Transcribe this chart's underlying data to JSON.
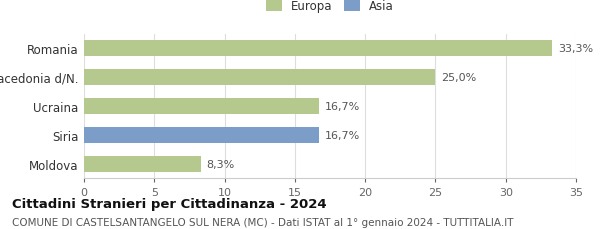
{
  "categories": [
    "Moldova",
    "Siria",
    "Ucraina",
    "Macedonia d/N.",
    "Romania"
  ],
  "values": [
    8.3,
    16.7,
    16.7,
    25.0,
    33.3
  ],
  "colors": [
    "#b5c98e",
    "#7b9dc7",
    "#b5c98e",
    "#b5c98e",
    "#b5c98e"
  ],
  "labels": [
    "8,3%",
    "16,7%",
    "16,7%",
    "25,0%",
    "33,3%"
  ],
  "legend": [
    {
      "label": "Europa",
      "color": "#b5c98e"
    },
    {
      "label": "Asia",
      "color": "#7b9dc7"
    }
  ],
  "xlim": [
    0,
    35
  ],
  "xticks": [
    0,
    5,
    10,
    15,
    20,
    25,
    30,
    35
  ],
  "title": "Cittadini Stranieri per Cittadinanza - 2024",
  "subtitle": "COMUNE DI CASTELSANTANGELO SUL NERA (MC) - Dati ISTAT al 1° gennaio 2024 - TUTTITALIA.IT",
  "title_fontsize": 9.5,
  "subtitle_fontsize": 7.5,
  "bar_height": 0.55,
  "background_color": "#ffffff",
  "grid_color": "#dddddd",
  "label_fontsize": 8,
  "tick_fontsize": 8,
  "ytick_fontsize": 8.5
}
